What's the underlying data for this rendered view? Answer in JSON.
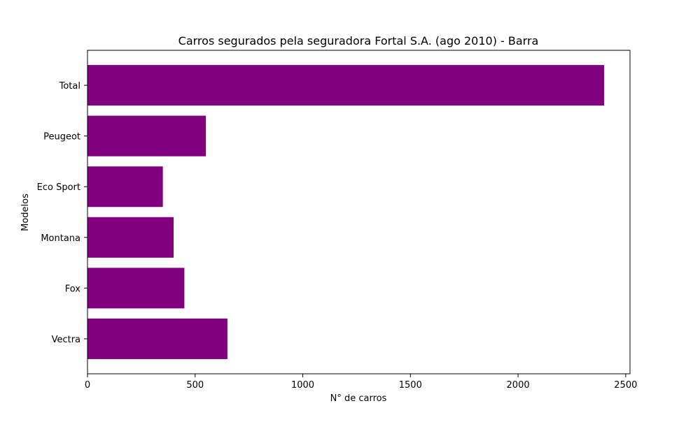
{
  "chart_data": {
    "type": "bar",
    "orientation": "horizontal",
    "title": "Carros segurados pela seguradora Fortal S.A. (ago 2010) - Barra",
    "xlabel": "N° de carros",
    "ylabel": "Modelos",
    "categories": [
      "Vectra",
      "Fox",
      "Montana",
      "Eco Sport",
      "Peugeot",
      "Total"
    ],
    "values": [
      650,
      450,
      400,
      350,
      550,
      2400
    ],
    "xlim": [
      0,
      2520
    ],
    "xticks": [
      0,
      500,
      1000,
      1500,
      2000,
      2500
    ],
    "bar_color": "#800080",
    "grid": false,
    "legend": "none"
  }
}
